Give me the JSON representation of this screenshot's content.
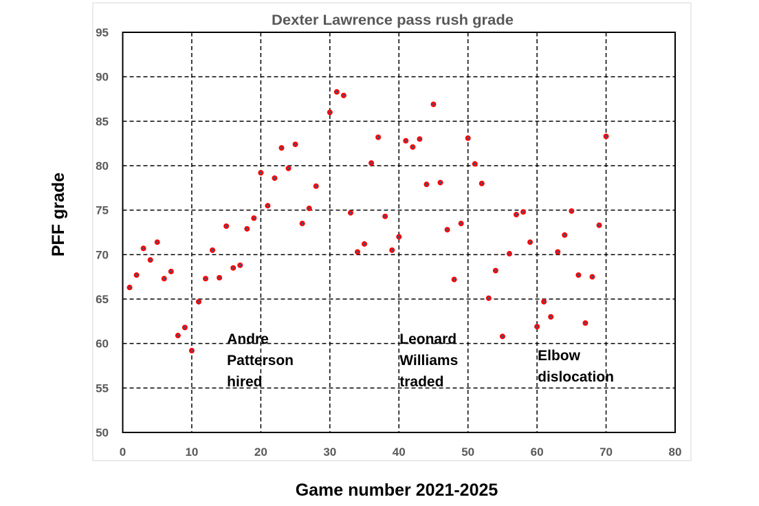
{
  "chart_data": {
    "type": "scatter",
    "title": "Dexter Lawrence pass rush grade",
    "xlabel": "Game number 2021-2025",
    "ylabel": "PFF grade",
    "xlim": [
      0,
      80
    ],
    "ylim": [
      50,
      95
    ],
    "xticks": [
      "0",
      "10",
      "20",
      "30",
      "40",
      "50",
      "60",
      "70",
      "80"
    ],
    "yticks": [
      "50",
      "55",
      "60",
      "65",
      "70",
      "75",
      "80",
      "85",
      "90",
      "95"
    ],
    "grid": true,
    "marker_color": "#ff0000",
    "marker_center_color": "#2e5f8a",
    "points": [
      [
        1,
        66.3
      ],
      [
        2,
        67.7
      ],
      [
        3,
        70.7
      ],
      [
        4,
        69.4
      ],
      [
        5,
        71.4
      ],
      [
        6,
        67.3
      ],
      [
        7,
        68.1
      ],
      [
        8,
        60.9
      ],
      [
        9,
        61.8
      ],
      [
        10,
        59.2
      ],
      [
        11,
        64.7
      ],
      [
        12,
        67.3
      ],
      [
        13,
        70.5
      ],
      [
        14,
        67.4
      ],
      [
        15,
        73.2
      ],
      [
        16,
        68.5
      ],
      [
        17,
        68.8
      ],
      [
        18,
        72.9
      ],
      [
        19,
        74.1
      ],
      [
        20,
        79.2
      ],
      [
        21,
        75.5
      ],
      [
        22,
        78.6
      ],
      [
        23,
        82.0
      ],
      [
        24,
        79.7
      ],
      [
        25,
        82.4
      ],
      [
        26,
        73.5
      ],
      [
        27,
        75.2
      ],
      [
        28,
        77.7
      ],
      [
        30,
        86.0
      ],
      [
        31,
        88.3
      ],
      [
        32,
        87.9
      ],
      [
        33,
        74.7
      ],
      [
        34,
        70.3
      ],
      [
        35,
        71.2
      ],
      [
        36,
        80.3
      ],
      [
        37,
        83.2
      ],
      [
        38,
        74.3
      ],
      [
        39,
        70.5
      ],
      [
        40,
        72.0
      ],
      [
        41,
        82.8
      ],
      [
        42,
        82.1
      ],
      [
        43,
        83.0
      ],
      [
        44,
        77.9
      ],
      [
        45,
        86.9
      ],
      [
        46,
        78.1
      ],
      [
        47,
        72.8
      ],
      [
        48,
        67.2
      ],
      [
        49,
        73.5
      ],
      [
        50,
        83.1
      ],
      [
        51,
        80.2
      ],
      [
        52,
        78.0
      ],
      [
        53,
        65.1
      ],
      [
        54,
        68.2
      ],
      [
        55,
        60.8
      ],
      [
        56,
        70.1
      ],
      [
        57,
        74.5
      ],
      [
        58,
        74.8
      ],
      [
        59,
        71.4
      ],
      [
        60,
        61.9
      ],
      [
        61,
        64.7
      ],
      [
        62,
        63.0
      ],
      [
        63,
        70.3
      ],
      [
        64,
        72.2
      ],
      [
        65,
        74.9
      ],
      [
        66,
        67.7
      ],
      [
        67,
        62.3
      ],
      [
        68,
        67.5
      ],
      [
        69,
        73.3
      ],
      [
        70,
        83.3
      ]
    ],
    "annotations": [
      {
        "x": 15,
        "lines": [
          "Andre",
          "Patterson",
          "hired"
        ]
      },
      {
        "x": 40,
        "lines": [
          "Leonard",
          "Williams",
          "traded"
        ]
      },
      {
        "x": 60,
        "lines": [
          "Elbow",
          "dislocation"
        ]
      }
    ]
  }
}
